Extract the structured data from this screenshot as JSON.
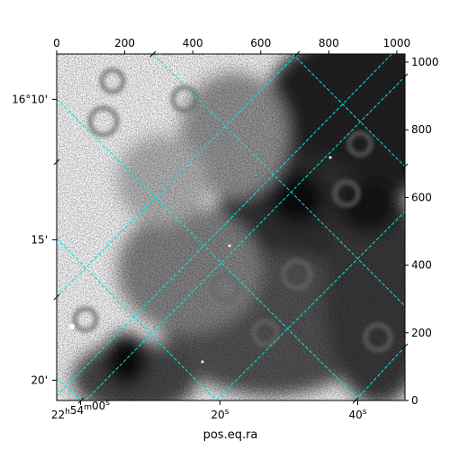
{
  "chart_data": {
    "type": "heatmap",
    "colormap": "grayscale",
    "xlabel": "pos.eq.ra",
    "pixel_axes": {
      "x": {
        "range": [
          0,
          1024
        ],
        "ticks": [
          "0",
          "200",
          "400",
          "600",
          "800",
          "1000"
        ]
      },
      "y": {
        "range": [
          0,
          1024
        ],
        "ticks": [
          "0",
          "200",
          "400",
          "600",
          "800",
          "1000"
        ]
      }
    },
    "world_axes": {
      "ra_ticks": [
        {
          "label": "22h54m00s",
          "hours": "22",
          "minutes": "54",
          "seconds": "00",
          "x": 70
        },
        {
          "label": "20s",
          "seconds": "20",
          "x": 480
        },
        {
          "label": "40s",
          "seconds": "40",
          "x": 885
        }
      ],
      "dec_ticks": [
        {
          "label": "16°10'",
          "y": 890
        },
        {
          "label": "15'",
          "y": 475
        },
        {
          "label": "20'",
          "y": 60
        }
      ]
    },
    "grid": true,
    "grid_color": "#00e5e5"
  }
}
